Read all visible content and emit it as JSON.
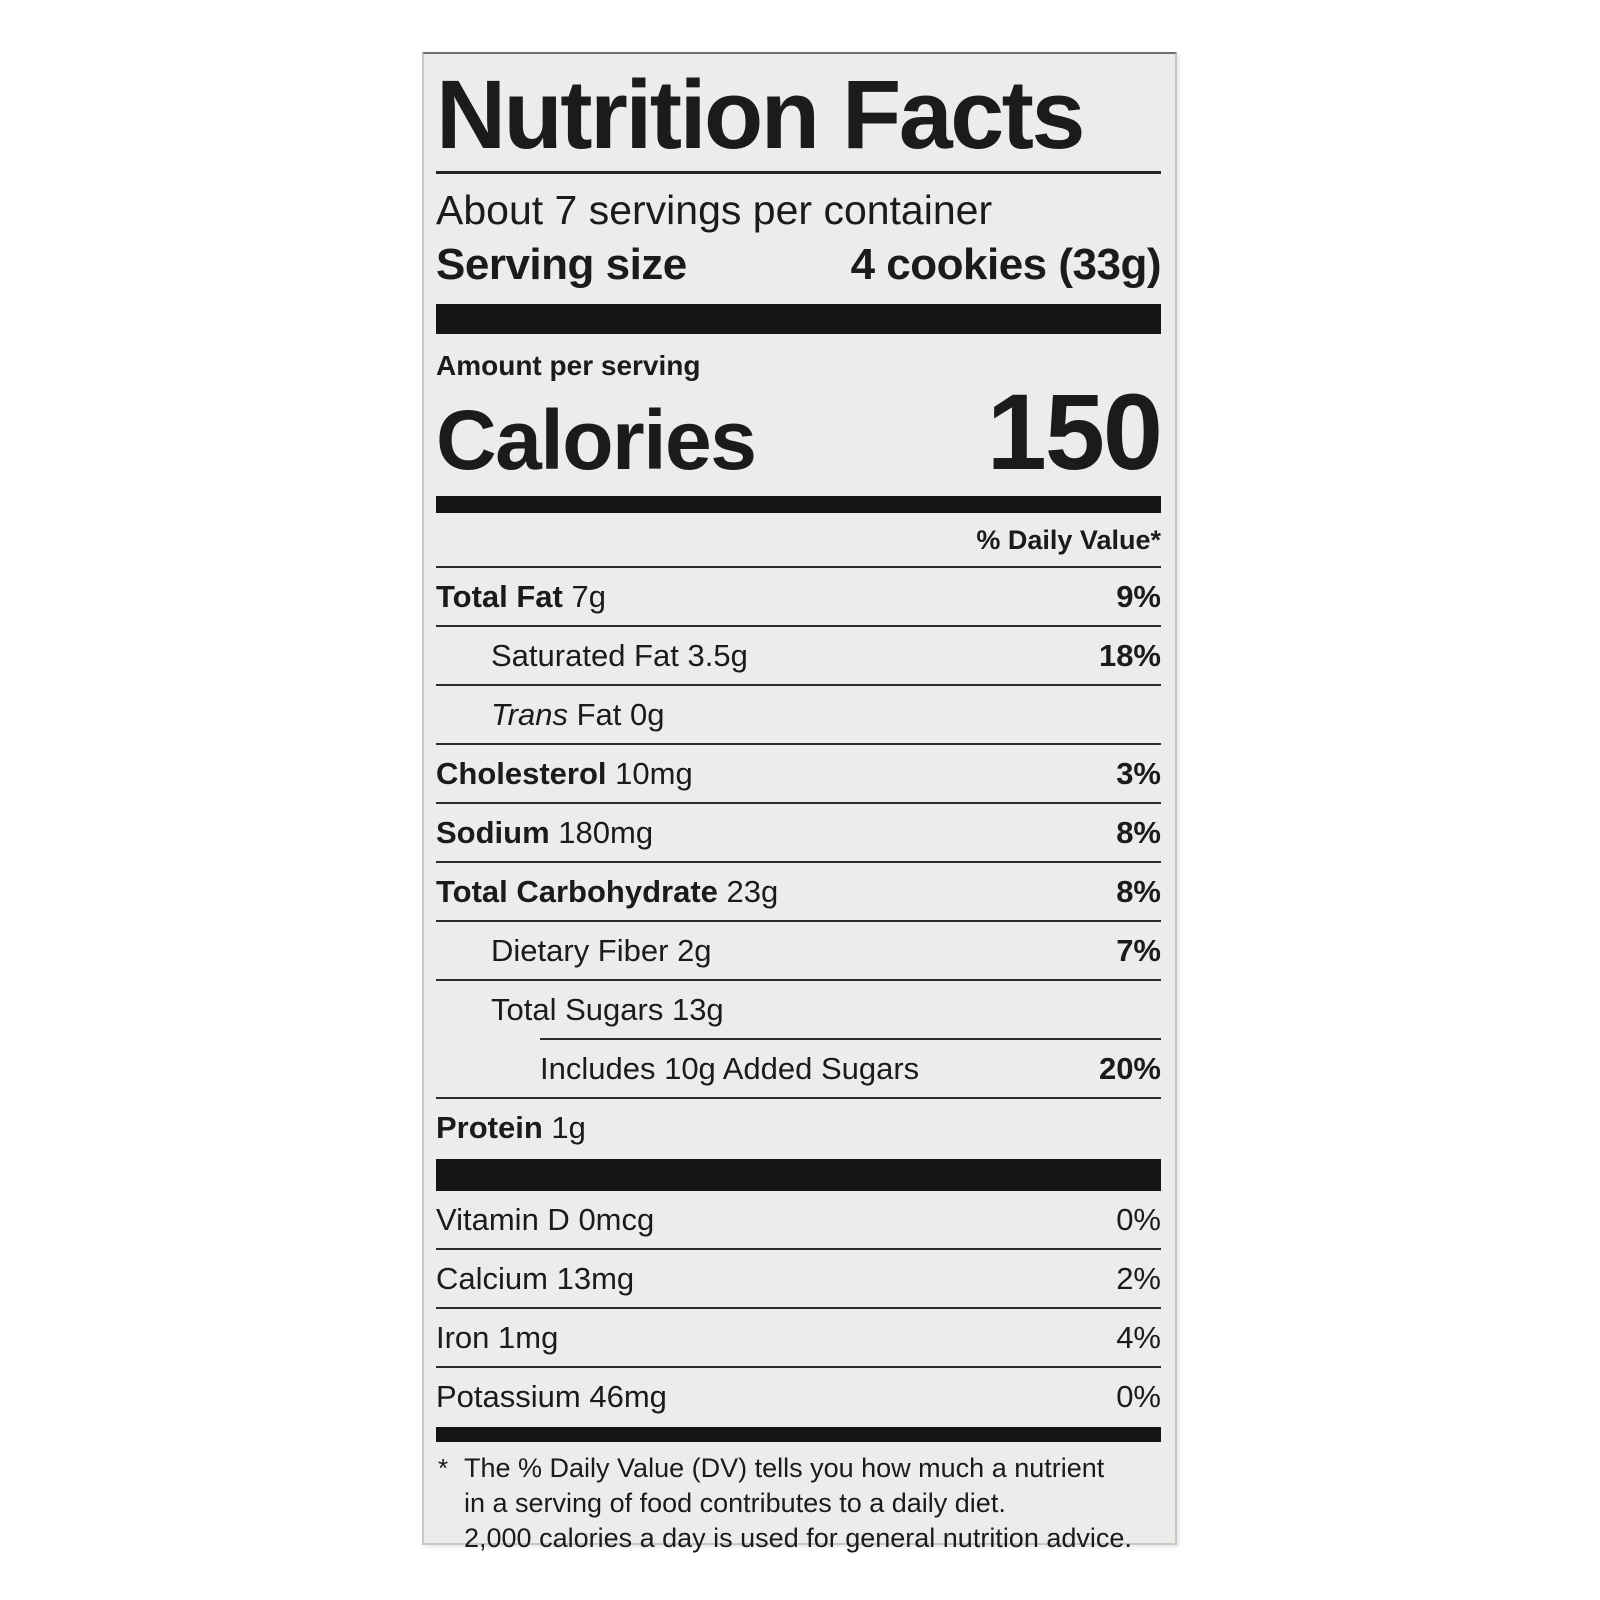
{
  "label": {
    "background_color": "#ecedeb",
    "text_color": "#1b1b1b",
    "title": "Nutrition Facts",
    "servings_per_container": "About 7 servings per container",
    "serving_size_label": "Serving size",
    "serving_size_value": "4 cookies (33g)",
    "amount_per_serving": "Amount per serving",
    "calories_label": "Calories",
    "calories_value": "150",
    "daily_value_header": "% Daily Value*",
    "nutrients": [
      {
        "name": "Total Fat",
        "amount": "7g",
        "dv": "9%"
      },
      {
        "name": "Saturated Fat",
        "amount": "3.5g",
        "dv": "18%"
      },
      {
        "name_italic": "Trans",
        "name_rest": " Fat",
        "amount": "0g",
        "dv": ""
      },
      {
        "name": "Cholesterol",
        "amount": "10mg",
        "dv": "3%"
      },
      {
        "name": "Sodium",
        "amount": "180mg",
        "dv": "8%"
      },
      {
        "name": "Total Carbohydrate",
        "amount": "23g",
        "dv": "8%"
      },
      {
        "name": "Dietary Fiber",
        "amount": "2g",
        "dv": "7%"
      },
      {
        "name": "Total Sugars",
        "amount": "13g",
        "dv": ""
      },
      {
        "name": "Includes 10g Added Sugars",
        "amount": "",
        "dv": "20%"
      },
      {
        "name": "Protein",
        "amount": "1g",
        "dv": ""
      }
    ],
    "vitamins": [
      {
        "name": "Vitamin D",
        "amount": "0mcg",
        "dv": "0%"
      },
      {
        "name": "Calcium",
        "amount": "13mg",
        "dv": "2%"
      },
      {
        "name": "Iron",
        "amount": "1mg",
        "dv": "4%"
      },
      {
        "name": "Potassium",
        "amount": "46mg",
        "dv": "0%"
      }
    ],
    "footnote": {
      "marker": "*",
      "line1": "The % Daily Value (DV) tells you how much a nutrient",
      "line2": "in a serving of food contributes to a daily diet.",
      "line3": "2,000 calories a day is used for general nutrition advice."
    }
  }
}
